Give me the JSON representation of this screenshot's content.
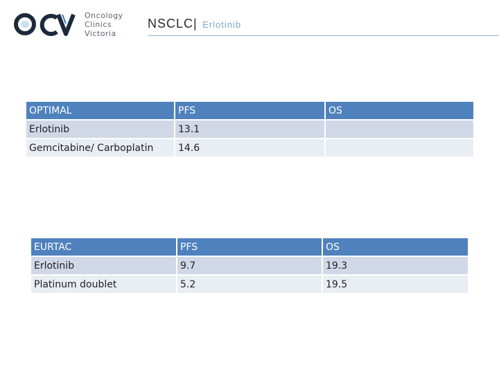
{
  "header": {
    "logo": {
      "mark_text": "OCV",
      "lines": [
        "Oncology",
        "Clinics",
        "Victoria"
      ],
      "colors": {
        "mark_dark": "#1c2a3a",
        "mark_accent": "#2a7fc0",
        "text": "#5a6470"
      }
    },
    "title": "NSCLC",
    "separator": "|",
    "subtitle": "Erlotinib"
  },
  "tables": [
    {
      "columns": [
        "OPTIMAL",
        "PFS",
        "OS"
      ],
      "rows": [
        [
          "Erlotinib",
          "13.1",
          ""
        ],
        [
          "Gemcitabine/ Carboplatin",
          "14.6",
          ""
        ]
      ]
    },
    {
      "columns": [
        "EURTAC",
        "PFS",
        "OS"
      ],
      "rows": [
        [
          "Erlotinib",
          "9.7",
          "19.3"
        ],
        [
          "Platinum doublet",
          "5.2",
          "19.5"
        ]
      ]
    }
  ],
  "colors": {
    "table_header": "#4f81bd",
    "row_odd": "#d0d8e8",
    "row_even": "#e9edf4",
    "rule": "#8fb8c8"
  }
}
